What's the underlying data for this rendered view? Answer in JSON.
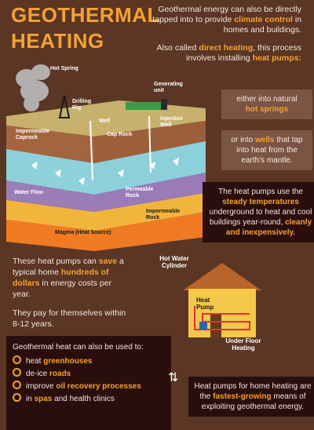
{
  "title": {
    "line1": "GEOTHERMAL",
    "line2": "HEATING"
  },
  "intro": {
    "p1_a": "Geothermal energy can also be directly tapped into to provide ",
    "p1_hl": "climate control",
    "p1_b": " in homes and buildings.",
    "p2_a": "Also called ",
    "p2_hl1": "direct heating",
    "p2_b": ", this process involves installing ",
    "p2_hl2": "heat pumps:"
  },
  "diagram_labels": {
    "hot_spring": "Hot Spring",
    "drilling_rig": "Drilling Rig",
    "generating_unit": "Generating unit",
    "well": "Well",
    "injection_well": "Injection Well",
    "impermeable_caprock": "Impermeable Caprock",
    "cap_rock": "Cap Rock",
    "water_flow": "Water Flow",
    "permeable_rock": "Permeable Rock",
    "impermeable_rock": "Impermeable Rock",
    "magma": "Magma (Heat Source)"
  },
  "callouts": {
    "c1_a": "either into natural",
    "c1_hl": "hot springs",
    "c2_a": "or into ",
    "c2_hl": "wells",
    "c2_b": " that tap into heat from the earth's mantle.",
    "c3_a": "The heat pumps use the ",
    "c3_hl1": "steady temperatures",
    "c3_b": " underground to heat and cool buildings year-round, ",
    "c3_hl2": "cleanly and inexpensively."
  },
  "savings": {
    "a": "These heat pumps can ",
    "hl1": "save",
    "b": " a typical home ",
    "hl2": "hundreds of dollars",
    "c": " in energy costs per year.",
    "payback": "They pay for themselves within 8-12 years."
  },
  "house_labels": {
    "cylinder": "Hot Water Cylinder",
    "pump": "Heat Pump",
    "floor": "Under Floor Heating"
  },
  "uses": {
    "intro": "Geothermal heat can also be used to:",
    "items": [
      {
        "pre": "heat ",
        "hl": "greenhouses",
        "post": ""
      },
      {
        "pre": "de-ice ",
        "hl": "roads",
        "post": ""
      },
      {
        "pre": "improve ",
        "hl": "oil recovery processes",
        "post": ""
      },
      {
        "pre": "in ",
        "hl": "spas",
        "post": " and health clinics"
      }
    ]
  },
  "closing": {
    "a": "Heat pumps for home heating are the ",
    "hl": "fastest-growing",
    "b": " means of exploiting geothermal energy."
  }
}
